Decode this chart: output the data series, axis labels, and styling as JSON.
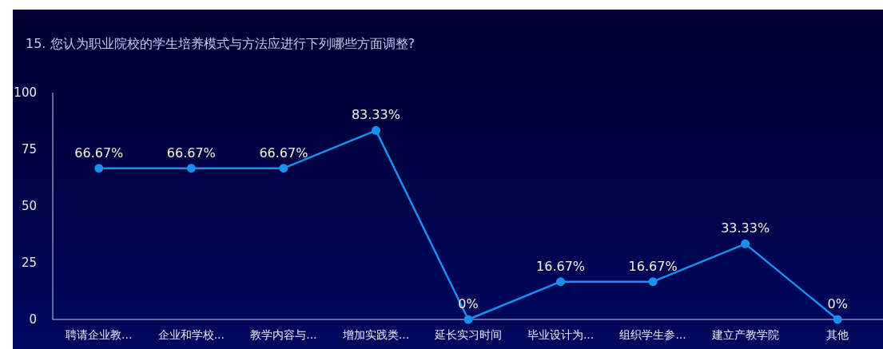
{
  "chart_data": {
    "type": "line",
    "title": "15. 您认为职业院校的学生培养模式与方法应进行下列哪些方面调整?",
    "categories": [
      "聘请企业教...",
      "企业和学校...",
      "教学内容与...",
      "增加实践类...",
      "延长实习时间",
      "毕业设计为...",
      "组织学生参...",
      "建立产教学院",
      "其他"
    ],
    "series": [
      {
        "color": "#1a8ff0",
        "values": [
          66.67,
          66.67,
          66.67,
          83.33,
          0,
          16.67,
          16.67,
          33.33,
          0
        ],
        "value_labels": [
          "66.67%",
          "66.67%",
          "66.67%",
          "83.33%",
          "0%",
          "16.67%",
          "16.67%",
          "33.33%",
          "0%"
        ]
      }
    ],
    "ylim": [
      0,
      100
    ],
    "yticks": [
      0,
      25,
      50,
      75,
      100
    ],
    "marker": "circle",
    "line_style": "solid",
    "grid": false
  }
}
